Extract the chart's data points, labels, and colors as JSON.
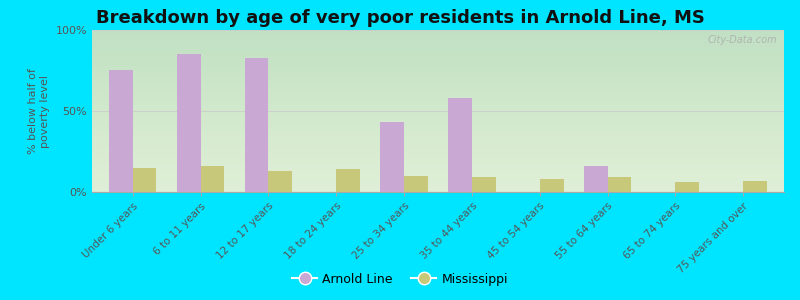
{
  "title": "Breakdown by age of very poor residents in Arnold Line, MS",
  "ylabel": "% below half of\npoverty level",
  "categories": [
    "Under 6 years",
    "6 to 11 years",
    "12 to 17 years",
    "18 to 24 years",
    "25 to 34 years",
    "35 to 44 years",
    "45 to 54 years",
    "55 to 64 years",
    "65 to 74 years",
    "75 years and over"
  ],
  "arnold_line": [
    75,
    85,
    83,
    0,
    43,
    58,
    0,
    16,
    0,
    0
  ],
  "mississippi": [
    15,
    16,
    13,
    14,
    10,
    9,
    8,
    9,
    6,
    7
  ],
  "arnold_line_color": "#c9a8d4",
  "mississippi_color": "#c8c87a",
  "ylim": [
    0,
    100
  ],
  "ytick_labels": [
    "0%",
    "50%",
    "100%"
  ],
  "bar_width": 0.35,
  "plot_bg_top": "#f0f5e8",
  "plot_bg_bottom": "#d8eecc",
  "outer_background": "#00e5ff",
  "title_fontsize": 13,
  "legend_labels": [
    "Arnold Line",
    "Mississippi"
  ],
  "watermark": "City-Data.com"
}
